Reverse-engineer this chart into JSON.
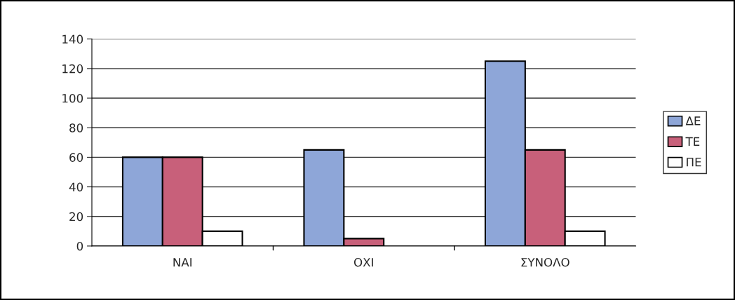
{
  "chart_data": {
    "type": "bar",
    "categories": [
      "ΝΑΙ",
      "ΟΧΙ",
      "ΣΥΝΟΛΟ"
    ],
    "series": [
      {
        "name": "ΔΕ",
        "color": "#8ea6d8",
        "values": [
          60,
          65,
          125
        ]
      },
      {
        "name": "ΤΕ",
        "color": "#c8607a",
        "values": [
          60,
          5,
          65
        ]
      },
      {
        "name": "ΠΕ",
        "color": "#ffffff",
        "values": [
          10,
          null,
          10
        ]
      }
    ],
    "ylim": [
      0,
      140
    ],
    "yticks": [
      0,
      20,
      40,
      60,
      80,
      100,
      120,
      140
    ],
    "grid": "y",
    "legend": "right"
  }
}
